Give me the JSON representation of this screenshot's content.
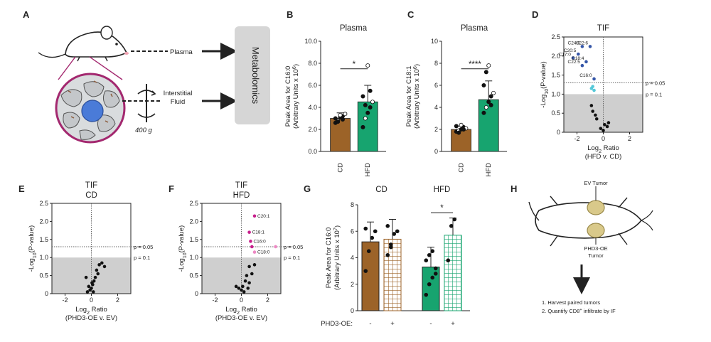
{
  "panel_letters": [
    "A",
    "B",
    "C",
    "D",
    "E",
    "F",
    "G",
    "H"
  ],
  "panel_a": {
    "plasma_label": "Plasma",
    "fluid_label_1": "Interstitial",
    "fluid_label_2": "Fluid",
    "speed_label": "400 g",
    "box_label": "Metabolomics"
  },
  "panel_h": {
    "ev_label": "EV Tumor",
    "oe_label_1": "PHD3-OE",
    "oe_label_2": "Tumor",
    "step_1": "1. Harvest paired tumors",
    "step_2_pre": "2. Quantify CD8",
    "step_2_sup": "+",
    "step_2_post": " infiltrate by IF"
  },
  "colors": {
    "cd_brown": "#9c6328",
    "hfd_green": "#17a46f",
    "dot_blue": "#3556a8",
    "dot_cyan": "#55c8d8",
    "dot_magenta": "#c8208c",
    "dot_pink": "#ec8ac4",
    "shade_gray": "#cfcfcf"
  },
  "chart_data": [
    {
      "id": "B",
      "type": "bar",
      "title": "Plasma",
      "ylabel_1": "Peak Area for C16:0",
      "ylabel_2": "(Arbitrary Units x 10",
      "ylabel_sup": "6",
      "ylabel_end": ")",
      "ylim": [
        0,
        10
      ],
      "yticks": [
        0,
        2,
        4,
        6,
        8,
        10
      ],
      "ytick_labels": [
        "0.0",
        "2.0",
        "4.0",
        "6.0",
        "8.0",
        "10.0"
      ],
      "categories": [
        "CD",
        "HFD"
      ],
      "values": [
        3.0,
        4.5
      ],
      "errors": [
        0.5,
        1.5
      ],
      "significance": "*",
      "points": [
        [
          2.6,
          2.8,
          3.1,
          3.2,
          3.4,
          3.0,
          2.7,
          3.3,
          2.9
        ],
        [
          2.2,
          3.0,
          3.5,
          4.0,
          4.5,
          5.0,
          4.2,
          7.8,
          5.5
        ]
      ]
    },
    {
      "id": "C",
      "type": "bar",
      "title": "Plasma",
      "ylabel_1": "Peak Area for C18:1",
      "ylabel_2": "(Arbitrary Units x 10",
      "ylabel_sup": "6",
      "ylabel_end": ")",
      "ylim": [
        0,
        10
      ],
      "yticks": [
        0,
        2,
        4,
        6,
        8,
        10
      ],
      "ytick_labels": [
        "0",
        "2",
        "4",
        "6",
        "8",
        "10"
      ],
      "categories": [
        "CD",
        "HFD"
      ],
      "values": [
        2.0,
        4.7
      ],
      "errors": [
        0.3,
        1.7
      ],
      "significance": "****",
      "points": [
        [
          1.8,
          1.9,
          2.0,
          2.2,
          2.1,
          2.3,
          1.7,
          2.4,
          2.0
        ],
        [
          3.5,
          4.0,
          4.5,
          5.0,
          5.3,
          6.0,
          7.2,
          7.8,
          4.2
        ]
      ]
    },
    {
      "id": "D",
      "type": "scatter",
      "title": "TIF",
      "xlabel_1": "Log",
      "xlabel_sub": "2",
      "xlabel_2": " Ratio",
      "xlabel_3": "(HFD v. CD)",
      "ylabel_1": "-Log",
      "ylabel_sub": "10",
      "ylabel_2": "(P-value)",
      "xlim": [
        -3,
        3
      ],
      "ylim": [
        0,
        2.5
      ],
      "xticks": [
        -2,
        0,
        2
      ],
      "yticks": [
        0,
        0.5,
        1,
        1.5,
        2,
        2.5
      ],
      "ytick_labels": [
        "0",
        "0.5",
        "1.0",
        "1.5",
        "2.0",
        "2.5"
      ],
      "p05_label": "p = 0.05",
      "p01_label": "p = 0.1",
      "p05": 1.3,
      "p01": 1.0,
      "points": [
        {
          "x": -1.6,
          "y": 2.25,
          "label": "C24:6",
          "color": "blue"
        },
        {
          "x": -1.0,
          "y": 2.25,
          "label": "C22:6",
          "color": "blue"
        },
        {
          "x": -1.9,
          "y": 2.05,
          "label": "C20:5",
          "color": "blue"
        },
        {
          "x": -2.3,
          "y": 1.95,
          "label": "C17:0",
          "color": "blue"
        },
        {
          "x": -1.3,
          "y": 1.85,
          "label": "C18:4",
          "color": "blue"
        },
        {
          "x": -1.6,
          "y": 1.75,
          "label": "C22:5",
          "color": "blue"
        },
        {
          "x": -0.7,
          "y": 1.4,
          "label": "C16:0",
          "color": "blue"
        },
        {
          "x": -0.8,
          "y": 1.2,
          "color": "cyan"
        },
        {
          "x": -0.9,
          "y": 1.15,
          "color": "cyan"
        },
        {
          "x": -0.7,
          "y": 1.1,
          "color": "cyan"
        },
        {
          "x": -0.9,
          "y": 0.7,
          "color": "black"
        },
        {
          "x": -0.8,
          "y": 0.55,
          "color": "black"
        },
        {
          "x": -0.6,
          "y": 0.45,
          "color": "black"
        },
        {
          "x": -0.5,
          "y": 0.35,
          "color": "black"
        },
        {
          "x": 0.1,
          "y": 0.2,
          "color": "black"
        },
        {
          "x": 0.3,
          "y": 0.15,
          "color": "black"
        },
        {
          "x": -0.2,
          "y": 0.1,
          "color": "black"
        },
        {
          "x": 0.0,
          "y": 0.05,
          "color": "black"
        },
        {
          "x": 0.4,
          "y": 0.25,
          "color": "black"
        }
      ]
    },
    {
      "id": "E",
      "type": "scatter",
      "title_1": "TIF",
      "title_2": "CD",
      "xlabel_1": "Log",
      "xlabel_sub": "2",
      "xlabel_2": " Ratio",
      "xlabel_3": "(PHD3-OE v. EV)",
      "ylabel_1": "-Log",
      "ylabel_sub": "10",
      "ylabel_2": "(P-value)",
      "xlim": [
        -3,
        3
      ],
      "ylim": [
        0,
        2.5
      ],
      "xticks": [
        -2,
        0,
        2
      ],
      "yticks": [
        0,
        0.5,
        1,
        1.5,
        2,
        2.5
      ],
      "ytick_labels": [
        "0",
        "0.5",
        "1.0",
        "1.5",
        "2.0",
        "2.5"
      ],
      "p05_label": "p = 0.05",
      "p01_label": "p = 0.1",
      "p05": 1.3,
      "p01": 1.0,
      "points": [
        {
          "x": 0.8,
          "y": 0.85,
          "color": "black"
        },
        {
          "x": 0.6,
          "y": 0.8,
          "color": "black"
        },
        {
          "x": 1.0,
          "y": 0.75,
          "color": "black"
        },
        {
          "x": 0.4,
          "y": 0.65,
          "color": "black"
        },
        {
          "x": 0.5,
          "y": 0.55,
          "color": "black"
        },
        {
          "x": 0.3,
          "y": 0.45,
          "color": "black"
        },
        {
          "x": 0.2,
          "y": 0.35,
          "color": "black"
        },
        {
          "x": -0.4,
          "y": 0.45,
          "color": "black"
        },
        {
          "x": 0.1,
          "y": 0.25,
          "color": "black"
        },
        {
          "x": -0.2,
          "y": 0.2,
          "color": "black"
        },
        {
          "x": 0.0,
          "y": 0.15,
          "color": "black"
        },
        {
          "x": -0.1,
          "y": 0.1,
          "color": "black"
        },
        {
          "x": 0.15,
          "y": 0.05,
          "color": "black"
        },
        {
          "x": -0.3,
          "y": 0.05,
          "color": "black"
        },
        {
          "x": 0.05,
          "y": 0.3,
          "color": "black"
        }
      ]
    },
    {
      "id": "F",
      "type": "scatter",
      "title_1": "TIF",
      "title_2": "HFD",
      "xlabel_1": "Log",
      "xlabel_sub": "2",
      "xlabel_2": " Ratio",
      "xlabel_3": "(PHD3-OE v. EV)",
      "ylabel_1": "-Log",
      "ylabel_sub": "10",
      "ylabel_2": "(P-value)",
      "xlim": [
        -3,
        3
      ],
      "ylim": [
        0,
        2.5
      ],
      "xticks": [
        -2,
        0,
        2
      ],
      "yticks": [
        0,
        0.5,
        1,
        1.5,
        2,
        2.5
      ],
      "ytick_labels": [
        "0",
        "0.5",
        "1.0",
        "1.5",
        "2.0",
        "2.5"
      ],
      "p05_label": "p = 0.05",
      "p01_label": "p = 0.1",
      "p05": 1.3,
      "p01": 1.0,
      "points": [
        {
          "x": 1.0,
          "y": 2.15,
          "label": "C20:1",
          "color": "magenta"
        },
        {
          "x": 0.6,
          "y": 1.7,
          "label": "C18:1",
          "color": "magenta"
        },
        {
          "x": 0.7,
          "y": 1.45,
          "label": "C16:0",
          "color": "magenta"
        },
        {
          "x": 0.8,
          "y": 1.3,
          "color": "magenta"
        },
        {
          "x": 2.6,
          "y": 1.3,
          "color": "pink"
        },
        {
          "x": 1.0,
          "y": 1.15,
          "label": "C18:0",
          "color": "pink"
        },
        {
          "x": 1.0,
          "y": 0.8,
          "color": "black"
        },
        {
          "x": 0.6,
          "y": 0.75,
          "color": "black"
        },
        {
          "x": 0.8,
          "y": 0.55,
          "color": "black"
        },
        {
          "x": 0.4,
          "y": 0.5,
          "color": "black"
        },
        {
          "x": 0.3,
          "y": 0.35,
          "color": "black"
        },
        {
          "x": 0.6,
          "y": 0.3,
          "color": "black"
        },
        {
          "x": 0.1,
          "y": 0.2,
          "color": "black"
        },
        {
          "x": -0.2,
          "y": 0.15,
          "color": "black"
        },
        {
          "x": 0.0,
          "y": 0.1,
          "color": "black"
        },
        {
          "x": -0.4,
          "y": 0.2,
          "color": "black"
        },
        {
          "x": 0.2,
          "y": 0.05,
          "color": "black"
        },
        {
          "x": 0.5,
          "y": 0.15,
          "color": "black"
        }
      ]
    },
    {
      "id": "G",
      "type": "bar",
      "ylabel_1": "Peak Area for C16:0",
      "ylabel_2": "(Arbitrary Units x 10",
      "ylabel_sup": "7",
      "ylabel_end": ")",
      "ylim": [
        0,
        8
      ],
      "yticks": [
        0,
        2,
        4,
        6,
        8
      ],
      "ytick_labels": [
        "0",
        "2",
        "4",
        "6",
        "8"
      ],
      "group_labels": [
        "CD",
        "HFD"
      ],
      "xrow_label": "PHD3-OE:",
      "xrow_values": [
        "-",
        "+",
        "-",
        "+"
      ],
      "values": [
        5.2,
        5.4,
        3.3,
        5.7
      ],
      "errors": [
        1.5,
        1.5,
        1.5,
        1.3
      ],
      "significance": "*",
      "points": [
        [
          3.0,
          4.5,
          5.5,
          6.0,
          6.2
        ],
        [
          4.2,
          5.0,
          5.8,
          6.0,
          6.4,
          4.8
        ],
        [
          1.2,
          2.0,
          2.5,
          3.2,
          3.8,
          4.2,
          4.5,
          2.8
        ],
        [
          3.8,
          6.4,
          6.9
        ]
      ]
    }
  ]
}
